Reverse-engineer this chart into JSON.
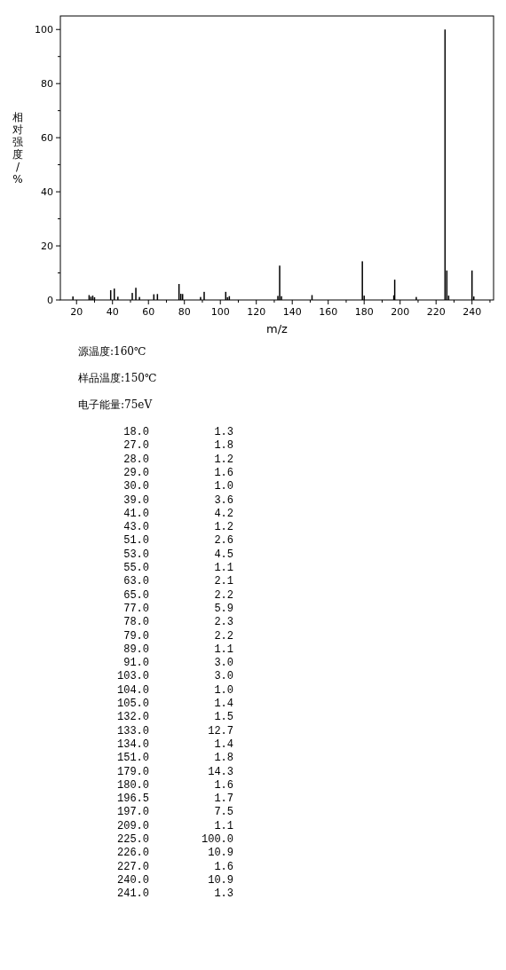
{
  "chart_data": [
    {
      "type": "bar",
      "xlabel": "m/z",
      "ylabel": "相对强度/%",
      "x": [
        18,
        27,
        28,
        29,
        30,
        39,
        41,
        43,
        51,
        53,
        55,
        63,
        65,
        77,
        78,
        79,
        89,
        91,
        103,
        104,
        105,
        132,
        133,
        134,
        151,
        179,
        180,
        196.5,
        197,
        209,
        225,
        226,
        227,
        240,
        241
      ],
      "values": [
        1.3,
        1.8,
        1.2,
        1.6,
        1.0,
        3.6,
        4.2,
        1.2,
        2.6,
        4.5,
        1.1,
        2.1,
        2.2,
        5.9,
        2.3,
        2.2,
        1.1,
        3.0,
        3.0,
        1.0,
        1.4,
        1.5,
        12.7,
        1.4,
        1.8,
        14.3,
        1.6,
        1.7,
        7.5,
        1.1,
        100.0,
        10.9,
        1.6,
        10.9,
        1.3
      ],
      "color": "#000000",
      "xlim": [
        11,
        252
      ],
      "xticks": [
        20,
        40,
        60,
        80,
        100,
        120,
        140,
        160,
        180,
        200,
        220,
        240,
        {
          "value": 30,
          "label": null
        },
        {
          "value": 50,
          "label": null
        },
        {
          "value": 70,
          "label": null
        },
        {
          "value": 90,
          "label": null
        },
        {
          "value": 110,
          "label": null
        },
        {
          "value": 130,
          "label": null
        },
        {
          "value": 150,
          "label": null
        },
        {
          "value": 170,
          "label": null
        },
        {
          "value": 190,
          "label": null
        },
        {
          "value": 210,
          "label": null
        },
        {
          "value": 230,
          "label": null
        },
        {
          "value": 250,
          "label": null
        }
      ],
      "ylim": [
        0,
        105
      ],
      "yticks": [
        0,
        20,
        40,
        60,
        80,
        100,
        {
          "value": 10,
          "label": null
        },
        {
          "value": 30,
          "label": null
        },
        {
          "value": 50,
          "label": null
        },
        {
          "value": 70,
          "label": null
        },
        {
          "value": 90,
          "label": null
        }
      ],
      "annotations": [
        "源温度:160℃",
        "样品温度:150℃",
        "电子能量:75eV"
      ]
    },
    {
      "type": "other",
      "categories": [
        "18.0",
        "27.0",
        "28.0",
        "29.0",
        "30.0",
        "39.0",
        "41.0",
        "43.0",
        "51.0",
        "53.0",
        "55.0",
        "63.0",
        "65.0",
        "77.0",
        "78.0",
        "79.0",
        "89.0",
        "91.0",
        "103.0",
        "104.0",
        "105.0",
        "132.0",
        "133.0",
        "134.0",
        "151.0",
        "179.0",
        "180.0",
        "196.5",
        "197.0",
        "209.0",
        "225.0",
        "226.0",
        "227.0",
        "240.0",
        "241.0"
      ],
      "values": [
        1.3,
        1.8,
        1.2,
        1.6,
        1.0,
        3.6,
        4.2,
        1.2,
        2.6,
        4.5,
        1.1,
        2.1,
        2.2,
        5.9,
        2.3,
        2.2,
        1.1,
        3.0,
        3.0,
        1.0,
        1.4,
        1.5,
        12.7,
        1.4,
        1.8,
        14.3,
        1.6,
        1.7,
        7.5,
        1.1,
        100.0,
        10.9,
        1.6,
        10.9,
        1.3
      ],
      "value_labels": [
        "1.3",
        "1.8",
        "1.2",
        "1.6",
        "1.0",
        "3.6",
        "4.2",
        "1.2",
        "2.6",
        "4.5",
        "1.1",
        "2.1",
        "2.2",
        "5.9",
        "2.3",
        "2.2",
        "1.1",
        "3.0",
        "3.0",
        "1.0",
        "1.4",
        "1.5",
        "12.7",
        "1.4",
        "1.8",
        "14.3",
        "1.6",
        "1.7",
        "7.5",
        "1.1",
        "100.0",
        "10.9",
        "1.6",
        "10.9",
        "1.3"
      ]
    }
  ]
}
